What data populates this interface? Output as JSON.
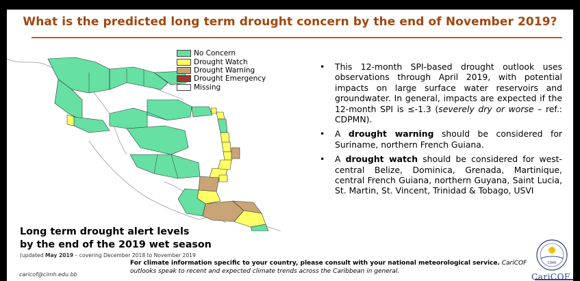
{
  "title": "What is the predicted long term drought concern by the end of November 2019?",
  "legend": [
    {
      "label": "No Concern",
      "color": "#66e0a3"
    },
    {
      "label": "Drought Watch",
      "color": "#ffff66"
    },
    {
      "label": "Drought Warning",
      "color": "#c8a477"
    },
    {
      "label": "Drought Emergency",
      "color": "#9b3a2e"
    },
    {
      "label": "Missing",
      "color": "#ffffff"
    }
  ],
  "bullets": {
    "b1": {
      "text": "This 12-month SPI-based drought outlook uses observations through April 2019, with potential impacts on large surface water reservoirs and groundwater. In general, impacts are expected if the 12-month SPI is ≤-1.3 (",
      "italic": "severely dry or worse",
      "tail": " – ref.: CDPMN)."
    },
    "b2": {
      "pre": "A ",
      "bold": "drought warning",
      "post": " should be considered for Suriname, northern French Guiana."
    },
    "b3": {
      "pre": "A ",
      "bold": "drought watch",
      "post": " should be considered for west-central Belize, Dominica, Grenada, Martinique, central French Guiana, northern Guyana, Saint Lucia, St. Martin, St. Vincent, Trinidad & Tobago, USVI"
    }
  },
  "caption": {
    "line1": "Long term drought alert levels",
    "line2": "by the end of the 2019 wet season"
  },
  "updated": {
    "prefix": "(updated ",
    "bold": "May 2019",
    "suffix": " – covering December 2018 to November 2019"
  },
  "footer": {
    "bold": "For climate information specific to your country, please consult with your national meteorological service.",
    "italic": " CariCOF outlooks speak to recent and expected climate trends across the Caribbean in general."
  },
  "email": "caricof@cimh.edu.bb",
  "logo": {
    "seal_text": "CIMH",
    "brand": "CariCOF"
  }
}
